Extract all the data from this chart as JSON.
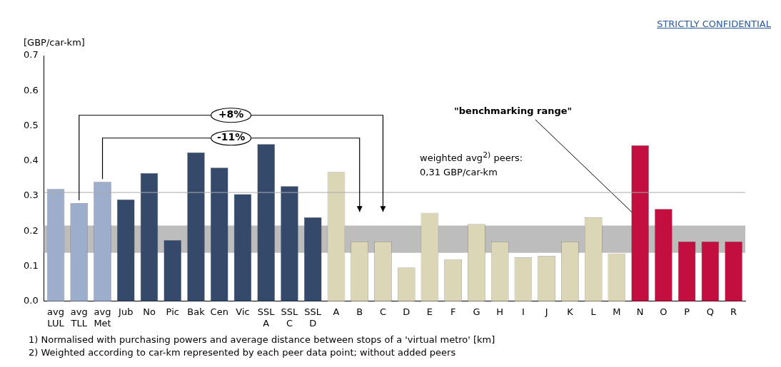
{
  "chart_data": {
    "type": "bar",
    "ylabel": "[GBP/car-km]",
    "categories": [
      "avg LUL",
      "avg TLL",
      "avg Met",
      "Jub",
      "No",
      "Pic",
      "Bak",
      "Cen",
      "Vic",
      "SSL A",
      "SSL C",
      "SSL D",
      "A",
      "B",
      "C",
      "D",
      "E",
      "F",
      "G",
      "H",
      "I",
      "J",
      "K",
      "L",
      "M",
      "N",
      "O",
      "P",
      "Q",
      "R"
    ],
    "values": [
      0.32,
      0.28,
      0.34,
      0.29,
      0.365,
      0.174,
      0.424,
      0.381,
      0.305,
      0.448,
      0.328,
      0.239,
      0.368,
      0.17,
      0.17,
      0.096,
      0.252,
      0.12,
      0.22,
      0.17,
      0.125,
      0.129,
      0.17,
      0.239,
      0.136,
      0.444,
      0.263,
      0.17,
      0.17,
      0.17
    ],
    "colors": [
      "#9dadcc",
      "#9dadcc",
      "#9dadcc",
      "#354a6b",
      "#354a6b",
      "#354a6b",
      "#354a6b",
      "#354a6b",
      "#354a6b",
      "#354a6b",
      "#354a6b",
      "#354a6b",
      "#dbd6b6",
      "#dbd6b6",
      "#dbd6b6",
      "#dbd6b6",
      "#dbd6b6",
      "#dbd6b6",
      "#dbd6b6",
      "#dbd6b6",
      "#dbd6b6",
      "#dbd6b6",
      "#dbd6b6",
      "#dbd6b6",
      "#dbd6b6",
      "#c20f3f",
      "#c20f3f",
      "#c20f3f",
      "#c20f3f",
      "#c20f3f"
    ],
    "ylim": [
      0,
      0.7
    ],
    "yticks": [
      {
        "value": 0,
        "label": "0.0"
      },
      {
        "value": 0.1,
        "label": "0.1"
      },
      {
        "value": 0.2,
        "label": "0.2"
      },
      {
        "value": 0.3,
        "label": "0.3"
      },
      {
        "value": 0.4,
        "label": "0.4"
      },
      {
        "value": 0.5,
        "label": "0.5"
      },
      {
        "value": 0.6,
        "label": "0.6"
      },
      {
        "value": 0.7,
        "label": "0.7"
      }
    ],
    "ref_lines": [
      {
        "axis": "y",
        "value": 0.31,
        "label": "weighted avg$^{2)}$ peers: 0,31 GBP/car-km",
        "color": "#aaaaaa"
      }
    ],
    "bands": [
      {
        "axis": "y",
        "from": 0.138,
        "to": 0.216,
        "label": "\"benchmarking range\"",
        "color": "#bdbdbd"
      }
    ],
    "annotations": [
      "+8%",
      "-11%",
      "STRICTLY CONFIDENTIAL",
      "1) Normalised with purchasing powers and average distance between stops of a 'virtual metro' [km]",
      "2) Weighted according to car-km represented by each peer data point; without added peers"
    ],
    "grid": false,
    "legend": false
  }
}
